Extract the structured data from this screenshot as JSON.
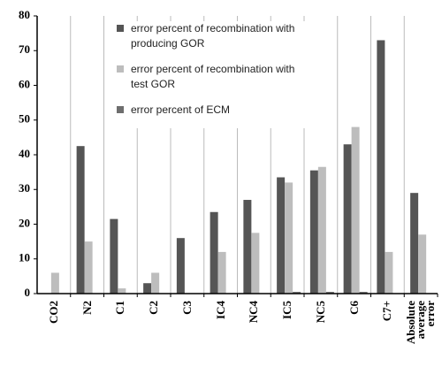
{
  "chart_data": {
    "type": "bar",
    "categories": [
      "CO2",
      "N2",
      "C1",
      "C2",
      "C3",
      "IC4",
      "NC4",
      "IC5",
      "NC5",
      "C6",
      "C7+",
      "Absolute average error"
    ],
    "series": [
      {
        "name": "error percent of recombination with producing GOR",
        "color": "#555555",
        "values": [
          0,
          42.5,
          21.5,
          3,
          16,
          23.5,
          27,
          33.5,
          35.5,
          43,
          73,
          29
        ]
      },
      {
        "name": "error percent of recombination with test GOR",
        "color": "#bdbdbd",
        "values": [
          6,
          15,
          1.5,
          6,
          0,
          12,
          17.5,
          32,
          36.5,
          48,
          12,
          17
        ]
      },
      {
        "name": "error percent of ECM",
        "color": "#6e6e6e",
        "values": [
          0,
          0,
          0,
          0,
          0,
          0,
          0,
          0.5,
          0.5,
          0.5,
          0,
          0
        ]
      }
    ],
    "ylim": [
      0,
      80
    ],
    "yticks": [
      0,
      10,
      20,
      30,
      40,
      50,
      60,
      70,
      80
    ]
  }
}
